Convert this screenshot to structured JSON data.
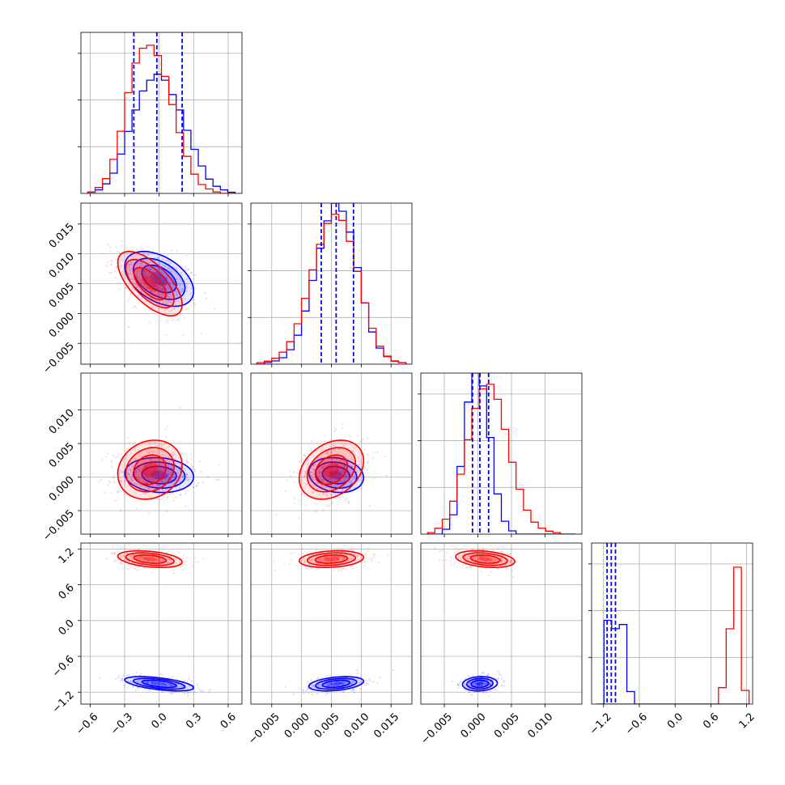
{
  "chart_data": {
    "type": "corner",
    "title": "",
    "grid": true,
    "colors": {
      "blue": "#0000ff",
      "red": "#ff0000"
    },
    "series": [
      {
        "color": "#0000ff",
        "means": [
          0.0,
          0.0058,
          0.0003,
          -1.06
        ],
        "sds": [
          0.15,
          0.0023,
          0.0013,
          0.06
        ],
        "quantile_lines": [
          [
            -0.22,
            -0.02,
            0.2
          ],
          [
            0.0033,
            0.0058,
            0.0087
          ],
          [
            -0.0008,
            0.0003,
            0.0016
          ],
          [
            -1.14,
            -1.07,
            -1.0
          ]
        ]
      },
      {
        "color": "#ff0000",
        "means": [
          -0.08,
          0.005,
          0.0011,
          1.03
        ],
        "sds": [
          0.14,
          0.0027,
          0.0022,
          0.07
        ]
      }
    ],
    "correlations": [
      {
        "pair": [
          0,
          1
        ],
        "blue": -0.45,
        "red": -0.65
      },
      {
        "pair": [
          0,
          2
        ],
        "blue": -0.1,
        "red": 0.15
      },
      {
        "pair": [
          1,
          2
        ],
        "blue": -0.15,
        "red": 0.3
      },
      {
        "pair": [
          0,
          3
        ],
        "blue": -0.55,
        "red": -0.35
      },
      {
        "pair": [
          1,
          3
        ],
        "blue": 0.35,
        "red": 0.2
      },
      {
        "pair": [
          2,
          3
        ],
        "blue": 0.1,
        "red": -0.3
      }
    ],
    "hist_profiles": {
      "d0": {
        "bins": [
          -0.62,
          0.66
        ],
        "blue": [
          0.01,
          0.03,
          0.08,
          0.17,
          0.33,
          0.52,
          0.7,
          0.86,
          0.95,
          1.0,
          0.95,
          0.83,
          0.7,
          0.53,
          0.37,
          0.23,
          0.12,
          0.06,
          0.03,
          0.01
        ],
        "red": [
          0.01,
          0.04,
          0.1,
          0.23,
          0.42,
          0.68,
          0.88,
          0.98,
          1.0,
          0.93,
          0.79,
          0.6,
          0.41,
          0.25,
          0.13,
          0.06,
          0.03,
          0.01,
          0.0,
          0.0
        ]
      },
      "d1": {
        "bins": [
          -0.0075,
          0.0175
        ],
        "blue": [
          0.0,
          0.01,
          0.02,
          0.04,
          0.09,
          0.18,
          0.33,
          0.52,
          0.72,
          0.89,
          1.0,
          0.95,
          0.82,
          0.6,
          0.38,
          0.2,
          0.1,
          0.05,
          0.02,
          0.01
        ],
        "red": [
          0.01,
          0.02,
          0.04,
          0.08,
          0.15,
          0.27,
          0.44,
          0.63,
          0.8,
          0.94,
          1.0,
          0.96,
          0.82,
          0.62,
          0.41,
          0.24,
          0.12,
          0.05,
          0.02,
          0.01
        ]
      },
      "d2": {
        "bins": [
          -0.0075,
          0.0145
        ],
        "blue": [
          0.0,
          0.0,
          0.03,
          0.12,
          0.42,
          0.82,
          1.0,
          0.92,
          0.6,
          0.25,
          0.08,
          0.02,
          0.0,
          0.0,
          0.0,
          0.0,
          0.0,
          0.0,
          0.0,
          0.0
        ],
        "red": [
          0.01,
          0.04,
          0.1,
          0.22,
          0.4,
          0.63,
          0.84,
          0.97,
          1.0,
          0.9,
          0.7,
          0.48,
          0.3,
          0.16,
          0.08,
          0.04,
          0.02,
          0.01,
          0.0,
          0.0
        ]
      },
      "d3": {
        "bins": [
          -1.32,
          1.24
        ],
        "blue": [
          0.0,
          1.0,
          0.9,
          0.95,
          0.15,
          0.0,
          0.0,
          0.0,
          0.0,
          0.0,
          0.0,
          0.0,
          0.0,
          0.0,
          0.0,
          0.0,
          0.0,
          0.0,
          0.0,
          0.0
        ],
        "red": [
          0.0,
          0.0,
          0.0,
          0.0,
          0.0,
          0.0,
          0.0,
          0.0,
          0.0,
          0.0,
          0.0,
          0.0,
          0.0,
          0.0,
          0.0,
          0.0,
          0.12,
          0.55,
          1.0,
          0.1
        ]
      }
    },
    "axes": [
      {
        "dim": 0,
        "range": [
          -0.68,
          0.72
        ],
        "ticks": [
          -0.6,
          -0.3,
          0.0,
          0.3,
          0.6
        ],
        "tick_labels": [
          "−0.6",
          "−0.3",
          "0.0",
          "0.3",
          "0.6"
        ]
      },
      {
        "dim": 1,
        "range": [
          -0.0085,
          0.0185
        ],
        "ticks": [
          -0.005,
          0.0,
          0.005,
          0.01,
          0.015
        ],
        "tick_labels": [
          "−0.005",
          "0.000",
          "0.005",
          "0.010",
          "0.015"
        ]
      },
      {
        "dim": 2,
        "range": [
          -0.0085,
          0.0155
        ],
        "ticks": [
          -0.005,
          0.0,
          0.005,
          0.01
        ],
        "tick_labels": [
          "−0.005",
          "0.000",
          "0.005",
          "0.010"
        ]
      },
      {
        "dim": 3,
        "range": [
          -1.4,
          1.3
        ],
        "ticks": [
          -1.2,
          -0.6,
          0.0,
          0.6,
          1.2
        ],
        "tick_labels": [
          "−1.2",
          "−0.6",
          "0.0",
          "0.6",
          "1.2"
        ]
      }
    ]
  }
}
